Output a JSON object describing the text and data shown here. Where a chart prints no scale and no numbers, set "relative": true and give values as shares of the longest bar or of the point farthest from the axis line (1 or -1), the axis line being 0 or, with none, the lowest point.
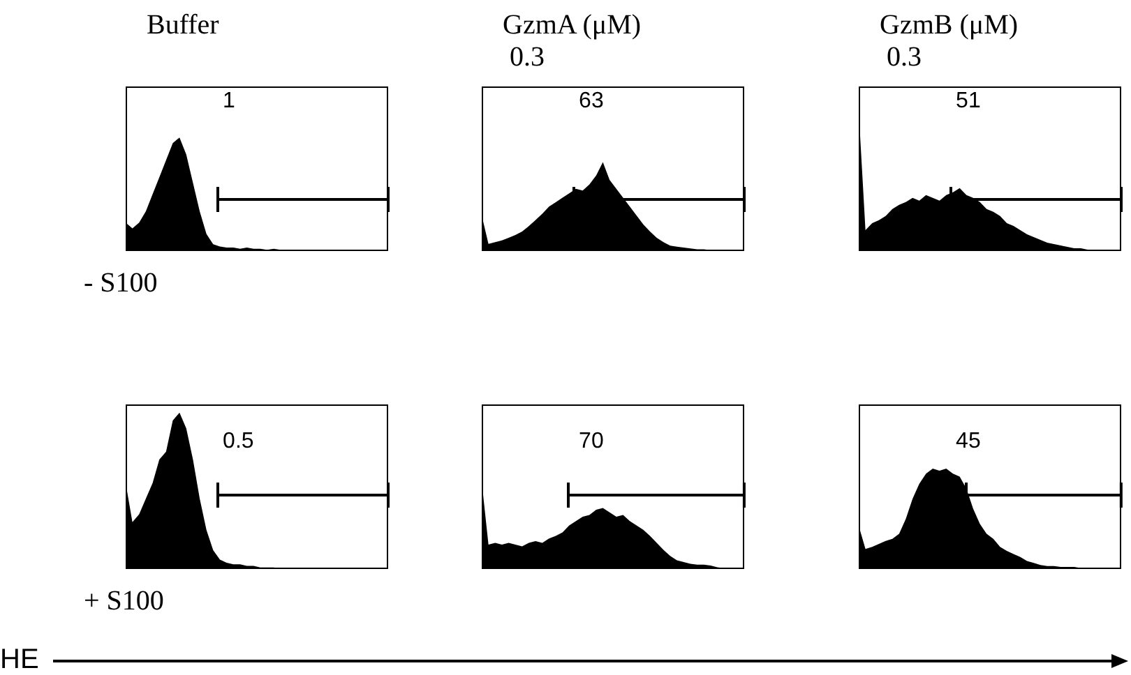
{
  "chart_data": [
    {
      "type": "area",
      "title": "Buffer",
      "relative": true,
      "annotations": [
        "1",
        "- S100"
      ],
      "categories": [
        null,
        null,
        null,
        null,
        null,
        null,
        null,
        null,
        null,
        null,
        null,
        null,
        null,
        null,
        null,
        null,
        null,
        null,
        null,
        null,
        null,
        null,
        null,
        null,
        null,
        null,
        null,
        null,
        null,
        null,
        null,
        null,
        null,
        null,
        null,
        null,
        null,
        null,
        null,
        null
      ],
      "series": [
        {
          "color": "#000000",
          "values": [
            0.25,
            0.2,
            0.25,
            0.35,
            0.5,
            0.65,
            0.8,
            0.95,
            1,
            0.85,
            0.6,
            0.35,
            0.15,
            0.06,
            0.04,
            0.03,
            0.03,
            0.02,
            0.03,
            0.02,
            0.02,
            0.01,
            0.02,
            0.01,
            0.01,
            0.01,
            0,
            0,
            0,
            0,
            0,
            0,
            0,
            0,
            0,
            0,
            0,
            0,
            0,
            0
          ]
        }
      ]
    },
    {
      "type": "area",
      "title": "GzmA (μM)",
      "subtitle": "0.3",
      "relative": true,
      "annotations": [
        "63"
      ],
      "categories": [
        null,
        null,
        null,
        null,
        null,
        null,
        null,
        null,
        null,
        null,
        null,
        null,
        null,
        null,
        null,
        null,
        null,
        null,
        null,
        null,
        null,
        null,
        null,
        null,
        null,
        null,
        null,
        null,
        null,
        null,
        null,
        null,
        null,
        null,
        null,
        null,
        null,
        null,
        null,
        null
      ],
      "series": [
        {
          "color": "#000000",
          "values": [
            0.4,
            0.08,
            0.1,
            0.12,
            0.15,
            0.18,
            0.22,
            0.28,
            0.35,
            0.42,
            0.5,
            0.55,
            0.6,
            0.65,
            0.7,
            0.68,
            0.75,
            0.85,
            1,
            0.8,
            0.7,
            0.6,
            0.5,
            0.4,
            0.3,
            0.22,
            0.15,
            0.1,
            0.06,
            0.05,
            0.04,
            0.03,
            0.02,
            0.02,
            0.01,
            0.01,
            0,
            0,
            0,
            0
          ]
        }
      ]
    },
    {
      "type": "area",
      "title": "GzmB (μM)",
      "subtitle": "0.3",
      "relative": true,
      "annotations": [
        "51"
      ],
      "categories": [
        null,
        null,
        null,
        null,
        null,
        null,
        null,
        null,
        null,
        null,
        null,
        null,
        null,
        null,
        null,
        null,
        null,
        null,
        null,
        null,
        null,
        null,
        null,
        null,
        null,
        null,
        null,
        null,
        null,
        null,
        null,
        null,
        null,
        null,
        null,
        null,
        null,
        null,
        null,
        null
      ],
      "series": [
        {
          "color": "#000000",
          "values": [
            1,
            0.15,
            0.2,
            0.22,
            0.25,
            0.3,
            0.33,
            0.35,
            0.38,
            0.36,
            0.4,
            0.38,
            0.36,
            0.4,
            0.42,
            0.45,
            0.4,
            0.38,
            0.35,
            0.3,
            0.28,
            0.25,
            0.2,
            0.18,
            0.15,
            0.12,
            0.1,
            0.08,
            0.06,
            0.05,
            0.04,
            0.03,
            0.02,
            0.02,
            0.01,
            0,
            0,
            0,
            0,
            0
          ]
        }
      ]
    },
    {
      "type": "area",
      "xlabel": "HE",
      "relative": true,
      "annotations": [
        "0.5",
        "+ S100"
      ],
      "categories": [
        null,
        null,
        null,
        null,
        null,
        null,
        null,
        null,
        null,
        null,
        null,
        null,
        null,
        null,
        null,
        null,
        null,
        null,
        null,
        null,
        null,
        null,
        null,
        null,
        null,
        null,
        null,
        null,
        null,
        null,
        null,
        null,
        null,
        null,
        null,
        null,
        null,
        null,
        null,
        null
      ],
      "series": [
        {
          "color": "#000000",
          "values": [
            0.55,
            0.3,
            0.35,
            0.45,
            0.55,
            0.7,
            0.75,
            0.95,
            1,
            0.9,
            0.7,
            0.45,
            0.25,
            0.12,
            0.06,
            0.04,
            0.03,
            0.03,
            0.02,
            0.02,
            0.01,
            0.01,
            0.01,
            0,
            0,
            0,
            0,
            0,
            0,
            0,
            0,
            0,
            0,
            0,
            0,
            0,
            0,
            0,
            0,
            0
          ]
        }
      ]
    },
    {
      "type": "area",
      "relative": true,
      "annotations": [
        "70"
      ],
      "categories": [
        null,
        null,
        null,
        null,
        null,
        null,
        null,
        null,
        null,
        null,
        null,
        null,
        null,
        null,
        null,
        null,
        null,
        null,
        null,
        null,
        null,
        null,
        null,
        null,
        null,
        null,
        null,
        null,
        null,
        null,
        null,
        null,
        null,
        null,
        null,
        null,
        null,
        null,
        null,
        null
      ],
      "series": [
        {
          "color": "#000000",
          "values": [
            1,
            0.28,
            0.3,
            0.28,
            0.3,
            0.28,
            0.26,
            0.3,
            0.32,
            0.3,
            0.35,
            0.38,
            0.42,
            0.5,
            0.55,
            0.6,
            0.62,
            0.68,
            0.7,
            0.65,
            0.6,
            0.62,
            0.55,
            0.5,
            0.45,
            0.38,
            0.3,
            0.22,
            0.15,
            0.1,
            0.08,
            0.06,
            0.05,
            0.05,
            0.04,
            0.02,
            0.01,
            0,
            0,
            0
          ]
        }
      ]
    },
    {
      "type": "area",
      "relative": true,
      "annotations": [
        "45"
      ],
      "categories": [
        null,
        null,
        null,
        null,
        null,
        null,
        null,
        null,
        null,
        null,
        null,
        null,
        null,
        null,
        null,
        null,
        null,
        null,
        null,
        null,
        null,
        null,
        null,
        null,
        null,
        null,
        null,
        null,
        null,
        null,
        null,
        null,
        null,
        null,
        null,
        null,
        null,
        null,
        null,
        null
      ],
      "series": [
        {
          "color": "#000000",
          "values": [
            0.43,
            0.2,
            0.22,
            0.25,
            0.28,
            0.3,
            0.35,
            0.5,
            0.7,
            0.85,
            0.95,
            1,
            0.98,
            1,
            0.95,
            0.92,
            0.8,
            0.6,
            0.45,
            0.35,
            0.3,
            0.22,
            0.18,
            0.15,
            0.12,
            0.08,
            0.06,
            0.04,
            0.03,
            0.03,
            0.02,
            0.02,
            0.02,
            0.01,
            0.01,
            0,
            0,
            0,
            0,
            0
          ]
        }
      ]
    }
  ]
}
